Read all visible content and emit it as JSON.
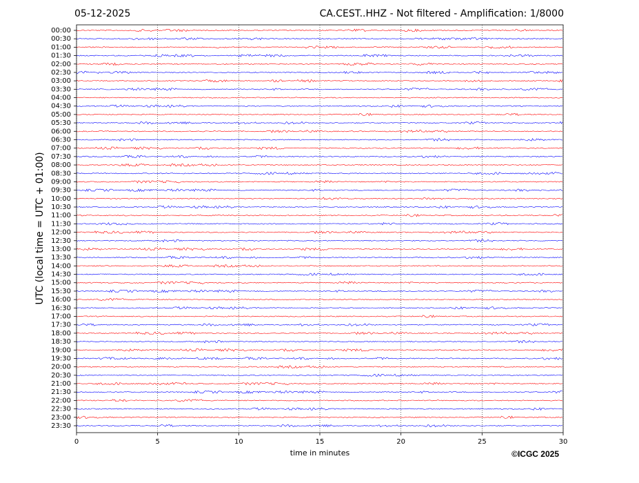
{
  "chart_data": {
    "type": "helicorder",
    "title_left": "05-12-2025",
    "title": "CA.CEST..HHZ - Not filtered - Amplification: 1/8000",
    "xlabel": "time in minutes",
    "ylabel": "UTC (local time = UTC + 01:00)",
    "footer": "©ICGC 2025",
    "categories": [
      "00:00",
      "00:30",
      "01:00",
      "01:30",
      "02:00",
      "02:30",
      "03:00",
      "03:30",
      "04:00",
      "04:30",
      "05:00",
      "05:30",
      "06:00",
      "06:30",
      "07:00",
      "07:30",
      "08:00",
      "08:30",
      "09:00",
      "09:30",
      "10:00",
      "10:30",
      "11:00",
      "11:30",
      "12:00",
      "12:30",
      "13:00",
      "13:30",
      "14:00",
      "14:30",
      "15:00",
      "15:30",
      "16:00",
      "16:30",
      "17:00",
      "17:30",
      "18:00",
      "18:30",
      "19:00",
      "19:30",
      "20:00",
      "20:30",
      "21:00",
      "21:30",
      "22:00",
      "22:30",
      "23:00",
      "23:30"
    ],
    "colors": [
      "#ff0000",
      "#0000ff"
    ],
    "xlim": [
      0,
      30
    ],
    "xticks": [
      0,
      5,
      10,
      15,
      20,
      25,
      30
    ],
    "grid": true
  }
}
